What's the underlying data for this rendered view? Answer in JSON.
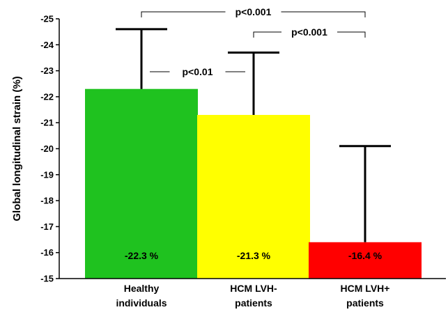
{
  "chart_data": {
    "type": "bar",
    "ylabel": "Global longitudinal strain (%)",
    "ylim": [
      -15,
      -25
    ],
    "yticks": [
      "-25",
      "-24",
      "-23",
      "-22",
      "-21",
      "-20",
      "-19",
      "-18",
      "-17",
      "-16",
      "-15"
    ],
    "categories": [
      [
        "Healthy",
        "individuals"
      ],
      [
        "HCM LVH-",
        "patients"
      ],
      [
        "HCM LVH+",
        "patients"
      ]
    ],
    "values": [
      -22.3,
      -21.3,
      -16.4
    ],
    "error_upper": [
      -24.6,
      -23.7,
      -20.1
    ],
    "bar_labels": [
      "-22.3 %",
      "-21.3 %",
      "-16.4 %"
    ],
    "colors": [
      "#1fc21f",
      "#ffff00",
      "#ff0000"
    ],
    "significance": [
      {
        "from": 0,
        "to": 1,
        "label": "p<0.01"
      },
      {
        "from": 1,
        "to": 2,
        "label": "p<0.001"
      },
      {
        "from": 0,
        "to": 2,
        "label": "p<0.001"
      }
    ]
  }
}
